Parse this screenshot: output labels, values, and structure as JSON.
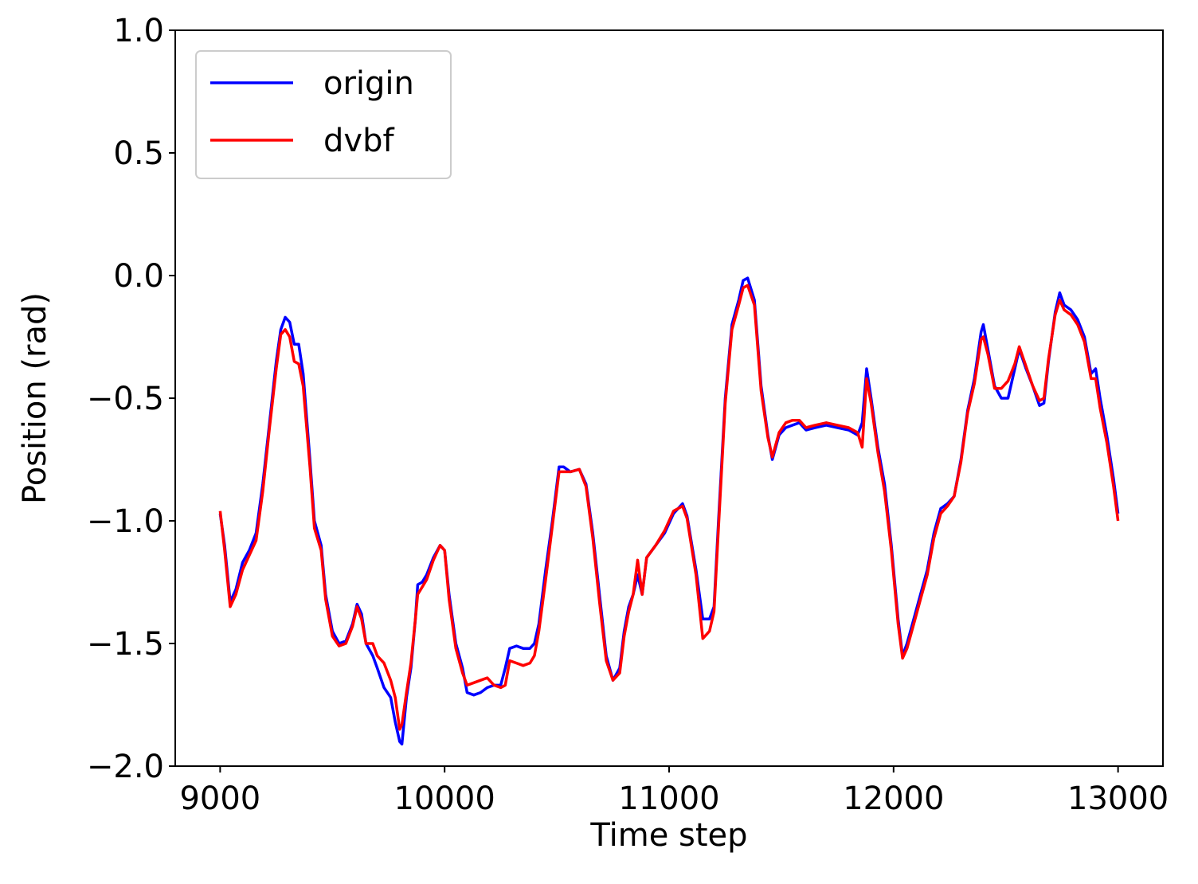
{
  "chart_data": {
    "type": "line",
    "xlabel": "Time step",
    "ylabel": "Position (rad)",
    "xlim": [
      8800,
      13200
    ],
    "ylim": [
      -2,
      1
    ],
    "xticks": [
      9000,
      10000,
      11000,
      12000,
      13000
    ],
    "yticks": [
      {
        "value": 1,
        "label": "1.0"
      },
      {
        "value": 0.5,
        "label": "0.5"
      },
      {
        "value": 0,
        "label": "0.0"
      },
      {
        "value": -0.5,
        "label": "−0.5"
      },
      {
        "value": -1,
        "label": "−1.0"
      },
      {
        "value": -1.5,
        "label": "−1.5"
      },
      {
        "value": -2,
        "label": "−2.0"
      }
    ],
    "legend": "upper left",
    "x": [
      9000,
      9020,
      9045,
      9070,
      9100,
      9130,
      9160,
      9190,
      9220,
      9250,
      9270,
      9290,
      9310,
      9330,
      9350,
      9370,
      9400,
      9420,
      9450,
      9470,
      9500,
      9530,
      9560,
      9590,
      9610,
      9630,
      9650,
      9680,
      9700,
      9730,
      9760,
      9780,
      9800,
      9810,
      9830,
      9850,
      9870,
      9880,
      9900,
      9920,
      9950,
      9980,
      10000,
      10020,
      10050,
      10080,
      10100,
      10130,
      10160,
      10190,
      10220,
      10250,
      10270,
      10290,
      10320,
      10350,
      10380,
      10400,
      10420,
      10450,
      10480,
      10510,
      10530,
      10560,
      10600,
      10630,
      10660,
      10690,
      10720,
      10750,
      10780,
      10800,
      10820,
      10840,
      10860,
      10880,
      10900,
      10940,
      10980,
      11020,
      11060,
      11080,
      11120,
      11150,
      11180,
      11200,
      11220,
      11250,
      11280,
      11310,
      11330,
      11350,
      11380,
      11410,
      11440,
      11460,
      11490,
      11520,
      11550,
      11580,
      11610,
      11650,
      11700,
      11750,
      11800,
      11840,
      11860,
      11880,
      11900,
      11930,
      11960,
      11990,
      12020,
      12040,
      12060,
      12090,
      12120,
      12150,
      12180,
      12210,
      12240,
      12270,
      12300,
      12330,
      12360,
      12390,
      12400,
      12420,
      12450,
      12480,
      12510,
      12540,
      12560,
      12590,
      12620,
      12650,
      12670,
      12690,
      12720,
      12740,
      12760,
      12790,
      12820,
      12850,
      12880,
      12900,
      12920,
      12950,
      12980,
      13000
    ],
    "series": [
      {
        "name": "origin",
        "color": "#0000ff",
        "values": [
          -0.97,
          -1.1,
          -1.33,
          -1.28,
          -1.17,
          -1.12,
          -1.05,
          -0.85,
          -0.6,
          -0.35,
          -0.22,
          -0.17,
          -0.19,
          -0.28,
          -0.28,
          -0.4,
          -0.75,
          -1.0,
          -1.1,
          -1.3,
          -1.45,
          -1.5,
          -1.49,
          -1.42,
          -1.34,
          -1.38,
          -1.5,
          -1.55,
          -1.6,
          -1.68,
          -1.72,
          -1.82,
          -1.9,
          -1.91,
          -1.72,
          -1.6,
          -1.4,
          -1.26,
          -1.25,
          -1.22,
          -1.15,
          -1.1,
          -1.12,
          -1.3,
          -1.5,
          -1.6,
          -1.7,
          -1.71,
          -1.7,
          -1.68,
          -1.67,
          -1.67,
          -1.6,
          -1.52,
          -1.51,
          -1.52,
          -1.52,
          -1.5,
          -1.42,
          -1.2,
          -1.0,
          -0.78,
          -0.78,
          -0.8,
          -0.79,
          -0.85,
          -1.05,
          -1.3,
          -1.55,
          -1.65,
          -1.6,
          -1.45,
          -1.35,
          -1.3,
          -1.22,
          -1.3,
          -1.15,
          -1.1,
          -1.05,
          -0.97,
          -0.93,
          -0.98,
          -1.2,
          -1.4,
          -1.4,
          -1.35,
          -1.0,
          -0.5,
          -0.2,
          -0.1,
          -0.02,
          -0.01,
          -0.1,
          -0.45,
          -0.65,
          -0.75,
          -0.65,
          -0.62,
          -0.61,
          -0.6,
          -0.63,
          -0.62,
          -0.61,
          -0.62,
          -0.63,
          -0.65,
          -0.6,
          -0.38,
          -0.5,
          -0.7,
          -0.85,
          -1.1,
          -1.4,
          -1.55,
          -1.5,
          -1.4,
          -1.3,
          -1.2,
          -1.05,
          -0.95,
          -0.93,
          -0.9,
          -0.75,
          -0.55,
          -0.42,
          -0.23,
          -0.2,
          -0.3,
          -0.45,
          -0.5,
          -0.5,
          -0.38,
          -0.3,
          -0.38,
          -0.45,
          -0.53,
          -0.52,
          -0.35,
          -0.15,
          -0.07,
          -0.12,
          -0.14,
          -0.18,
          -0.25,
          -0.4,
          -0.38,
          -0.5,
          -0.65,
          -0.83,
          -0.97
        ]
      },
      {
        "name": "dvbf",
        "color": "#ff0000",
        "values": [
          -0.96,
          -1.12,
          -1.35,
          -1.3,
          -1.2,
          -1.14,
          -1.08,
          -0.88,
          -0.62,
          -0.38,
          -0.24,
          -0.22,
          -0.25,
          -0.35,
          -0.36,
          -0.45,
          -0.78,
          -1.03,
          -1.12,
          -1.32,
          -1.47,
          -1.51,
          -1.5,
          -1.43,
          -1.35,
          -1.4,
          -1.5,
          -1.5,
          -1.55,
          -1.58,
          -1.65,
          -1.72,
          -1.85,
          -1.83,
          -1.7,
          -1.58,
          -1.4,
          -1.3,
          -1.27,
          -1.24,
          -1.16,
          -1.1,
          -1.12,
          -1.32,
          -1.52,
          -1.62,
          -1.67,
          -1.66,
          -1.65,
          -1.64,
          -1.67,
          -1.68,
          -1.67,
          -1.57,
          -1.58,
          -1.59,
          -1.58,
          -1.55,
          -1.45,
          -1.24,
          -1.02,
          -0.8,
          -0.8,
          -0.8,
          -0.79,
          -0.86,
          -1.07,
          -1.33,
          -1.57,
          -1.65,
          -1.62,
          -1.47,
          -1.37,
          -1.3,
          -1.16,
          -1.3,
          -1.15,
          -1.1,
          -1.04,
          -0.96,
          -0.94,
          -0.99,
          -1.22,
          -1.48,
          -1.45,
          -1.37,
          -1.03,
          -0.52,
          -0.22,
          -0.12,
          -0.05,
          -0.04,
          -0.12,
          -0.47,
          -0.66,
          -0.74,
          -0.64,
          -0.6,
          -0.59,
          -0.59,
          -0.62,
          -0.61,
          -0.6,
          -0.61,
          -0.62,
          -0.64,
          -0.7,
          -0.42,
          -0.52,
          -0.72,
          -0.88,
          -1.12,
          -1.42,
          -1.56,
          -1.52,
          -1.42,
          -1.32,
          -1.22,
          -1.07,
          -0.97,
          -0.94,
          -0.9,
          -0.76,
          -0.56,
          -0.44,
          -0.26,
          -0.25,
          -0.32,
          -0.46,
          -0.46,
          -0.43,
          -0.36,
          -0.29,
          -0.37,
          -0.45,
          -0.51,
          -0.5,
          -0.34,
          -0.16,
          -0.1,
          -0.14,
          -0.16,
          -0.2,
          -0.27,
          -0.42,
          -0.42,
          -0.54,
          -0.68,
          -0.86,
          -1.0
        ]
      }
    ]
  }
}
